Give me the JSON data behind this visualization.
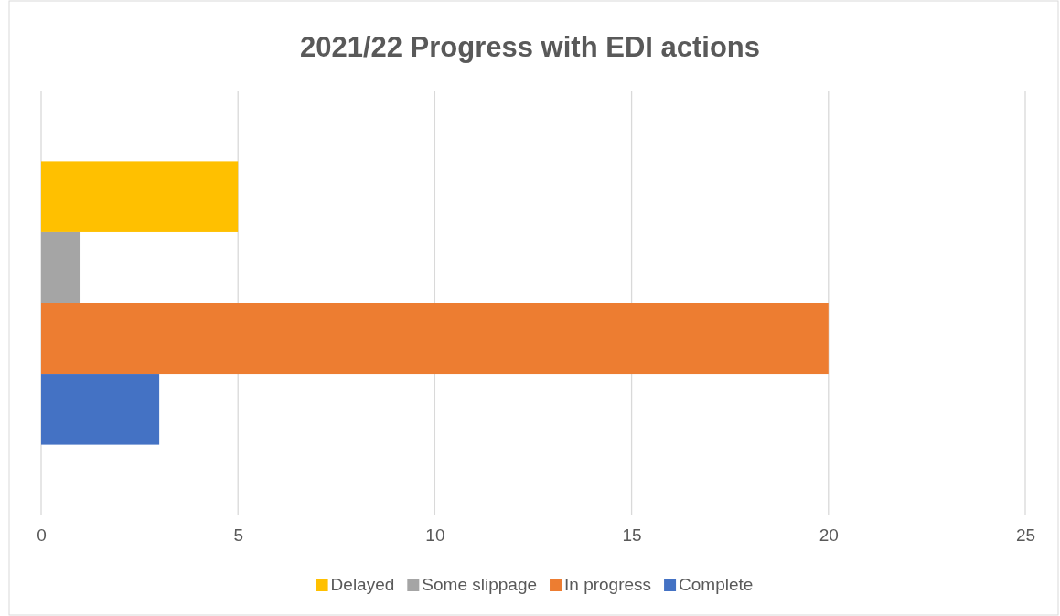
{
  "chart_data": {
    "type": "bar",
    "orientation": "horizontal",
    "title": "2021/22 Progress with EDI actions",
    "categories": [
      null
    ],
    "series": [
      {
        "name": "Delayed",
        "color": "#ffc000",
        "values": [
          5
        ]
      },
      {
        "name": "Some slippage",
        "color": "#a5a5a5",
        "values": [
          1
        ]
      },
      {
        "name": "In progress",
        "color": "#ed7d31",
        "values": [
          20
        ]
      },
      {
        "name": "Complete",
        "color": "#4472c4",
        "values": [
          3
        ]
      }
    ],
    "xlim": [
      0,
      25
    ],
    "xticks": [
      0,
      5,
      10,
      15,
      20,
      25
    ],
    "grid": "x",
    "legend": "bottom"
  }
}
